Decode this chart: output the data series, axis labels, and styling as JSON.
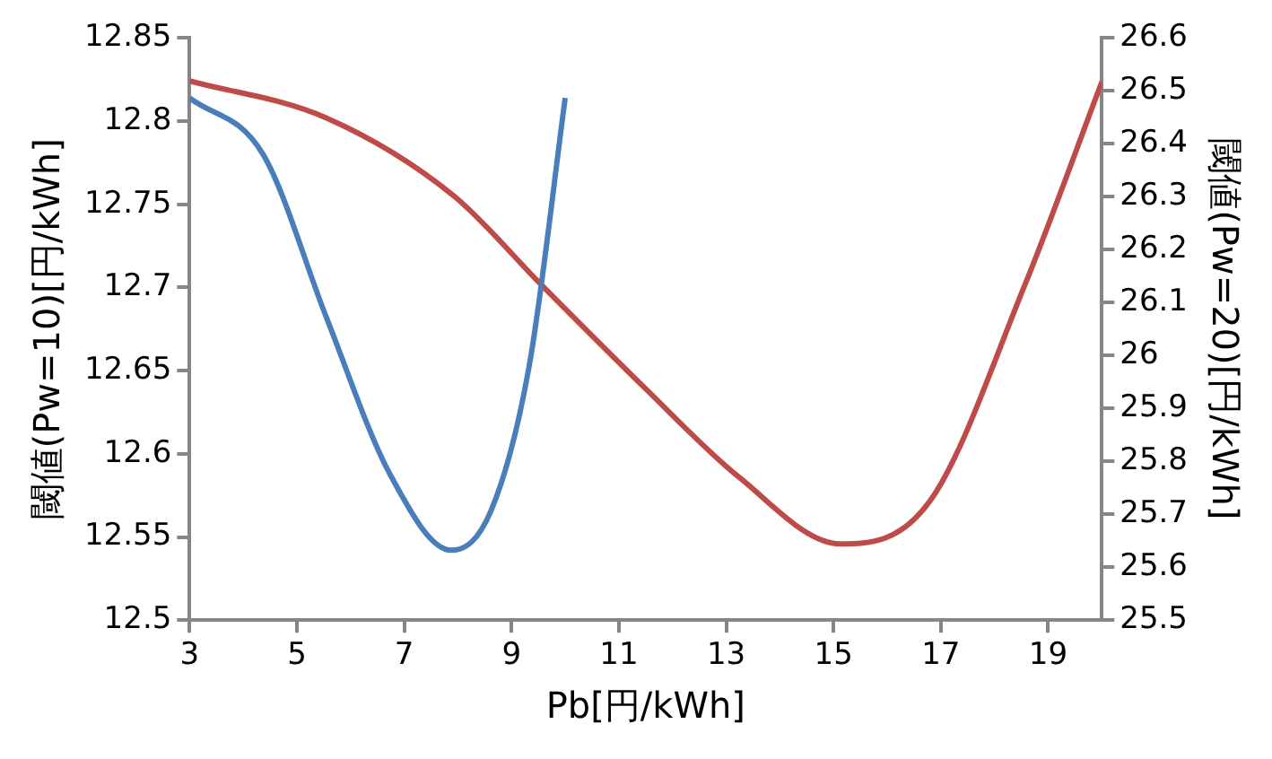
{
  "chart_data": {
    "type": "line",
    "xlabel": "Pb[円/kWh]",
    "ylabel": "閾値(Pw=10)[円/kWh]",
    "y2label": "閾値(Pw=20)[円/kWh]",
    "xlim": [
      3,
      20
    ],
    "xticks": [
      3,
      5,
      7,
      9,
      11,
      13,
      15,
      17,
      19
    ],
    "ylim": [
      12.5,
      12.85
    ],
    "yticks": [
      12.5,
      12.55,
      12.6,
      12.65,
      12.7,
      12.75,
      12.8,
      12.85
    ],
    "y2lim": [
      25.5,
      26.6
    ],
    "y2ticks": [
      25.5,
      25.6,
      25.7,
      25.8,
      25.9,
      26,
      26.1,
      26.2,
      26.3,
      26.4,
      26.5,
      26.6
    ],
    "grid": false,
    "legend": false,
    "marker": "none",
    "line_style": "solid",
    "series": [
      {
        "color": "#4a7ebb",
        "x": [
          3,
          4.37,
          5.55,
          6.73,
          7.88,
          8.62,
          9.33,
          10
        ],
        "values": [
          12.814,
          12.78,
          12.682,
          12.588,
          12.542,
          12.566,
          12.653,
          12.814
        ]
      },
      {
        "color": "#be4b48",
        "axis": "y2",
        "x": [
          3,
          5.55,
          7.92,
          9.57,
          11.47,
          13.24,
          15.13,
          16.79,
          18.56,
          20
        ],
        "values": [
          26.519,
          26.449,
          26.302,
          26.132,
          25.94,
          25.77,
          25.644,
          25.724,
          26.132,
          26.517
        ]
      }
    ]
  }
}
